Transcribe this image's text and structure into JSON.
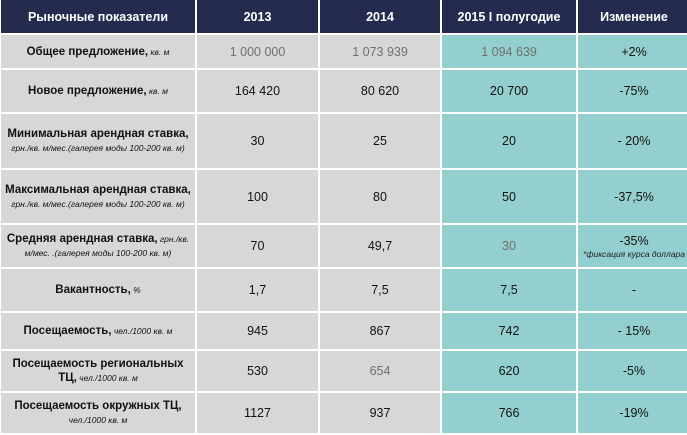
{
  "table": {
    "headers": [
      "Рыночные показатели",
      "2013",
      "2014",
      "2015  I полугодие",
      "Изменение"
    ],
    "rows": [
      {
        "label": "Общее предложение,",
        "unit": " кв. м",
        "y2013": "1 000 000",
        "y2014": "1 073 939",
        "y2015": "1 094 639",
        "change": "+2%",
        "note": ""
      },
      {
        "label": "Новое предложение,",
        "unit": " кв. м",
        "y2013": "164 420",
        "y2014": "80 620",
        "y2015": "20 700",
        "change": "-75%",
        "note": ""
      },
      {
        "label": "Минимальная арендная ставка,",
        "unit": " грн./кв. м/мес.(галерея моды 100-200 кв. м)",
        "y2013": "30",
        "y2014": "25",
        "y2015": "20",
        "change": "- 20%",
        "note": ""
      },
      {
        "label": "Максимальная арендная ставка,",
        "unit": " грн./кв. м/мес.(галерея моды 100-200 кв. м)",
        "y2013": "100",
        "y2014": "80",
        "y2015": "50",
        "change": "-37,5%",
        "note": ""
      },
      {
        "label": "Средняя арендная ставка,",
        "unit": " грн./кв. м/мес. .(галерея моды 100-200 кв. м)",
        "y2013": "70",
        "y2014": "49,7",
        "y2015": "30",
        "change": "-35%",
        "note": "*фиксация курса доллара"
      },
      {
        "label": "Вакантность,",
        "unit": " %",
        "y2013": "1,7",
        "y2014": "7,5",
        "y2015": "7,5",
        "change": "-",
        "note": ""
      },
      {
        "label": "Посещаемость,",
        "unit": " чел./1000 кв. м",
        "y2013": "945",
        "y2014": "867",
        "y2015": "742",
        "change": "- 15%",
        "note": ""
      },
      {
        "label": "Посещаемость региональных ТЦ,",
        "unit": " чел./1000 кв. м",
        "y2013": "530",
        "y2014": "654",
        "y2015": "620",
        "change": "-5%",
        "note": ""
      },
      {
        "label": "Посещаемость окружных ТЦ,",
        "unit": " чел./1000 кв. м",
        "y2013": "1127",
        "y2014": "937",
        "y2015": "766",
        "change": "-19%",
        "note": ""
      }
    ]
  },
  "colors": {
    "header_bg": "#252b4f",
    "label_bg": "#d7d7d7",
    "highlight_bg": "#94cfcf"
  }
}
